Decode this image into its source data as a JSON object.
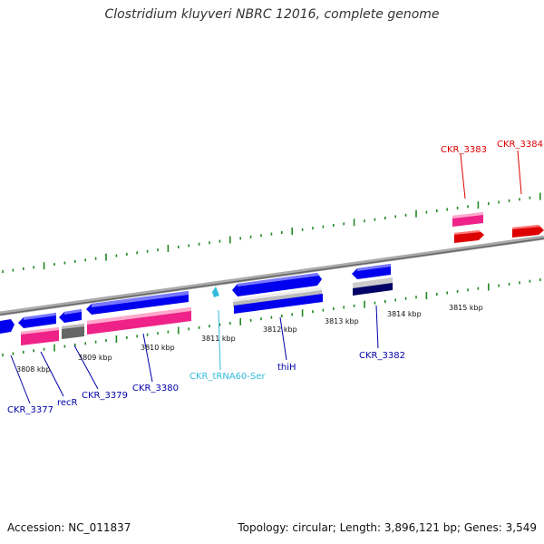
{
  "title": "Clostridium kluyveri NBRC 12016, complete genome",
  "footer": {
    "accession": "Accession: NC_011837",
    "topology": "Topology: circular; Length: 3,896,121 bp; Genes: 3,549"
  },
  "colors": {
    "forward_cds": "#0000ee",
    "reverse_cds": "#dd0000",
    "rna": "#33bbdd",
    "pink_feature": "#ee2288",
    "gray_feature": "#777777",
    "backbone": "#888888",
    "tick": "#228822"
  },
  "scale_labels": [
    "3808 kbp",
    "3809 kbp",
    "3810 kbp",
    "3811 kbp",
    "3812 kbp",
    "3813 kbp",
    "3814 kbp",
    "3815 kbp"
  ],
  "gene_labels": [
    {
      "name": "CKR_3383",
      "strand": "reverse"
    },
    {
      "name": "CKR_3384",
      "strand": "reverse"
    },
    {
      "name": "CKR_3377",
      "strand": "forward"
    },
    {
      "name": "recR",
      "strand": "forward"
    },
    {
      "name": "CKR_3379",
      "strand": "forward"
    },
    {
      "name": "CKR_3380",
      "strand": "forward"
    },
    {
      "name": "CKR_tRNA60-Ser",
      "strand": "rna"
    },
    {
      "name": "thiH",
      "strand": "forward"
    },
    {
      "name": "CKR_3382",
      "strand": "forward"
    }
  ]
}
